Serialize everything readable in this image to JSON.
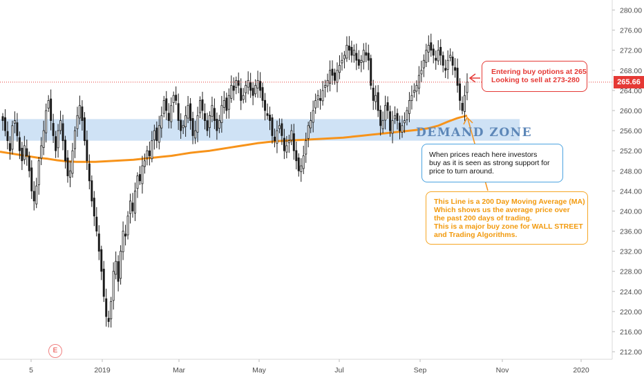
{
  "chart_data": {
    "type": "candlestick",
    "price_axis": {
      "ylim": [
        210.5,
        282
      ],
      "ticks": [
        212,
        216,
        220,
        224,
        228,
        232,
        236,
        240,
        244,
        248,
        252,
        256,
        260,
        264,
        268,
        272,
        276,
        280
      ],
      "decimals": 2
    },
    "time_axis": {
      "labels": [
        "5",
        "2019",
        "Mar",
        "May",
        "Jul",
        "Sep",
        "Nov",
        "2020"
      ]
    },
    "current_price": 265.66,
    "current_price_label": "265.66",
    "demand_zone": {
      "low": 254,
      "high": 258.3,
      "label": "DEMAND  ZONE"
    },
    "candles": {
      "notes": "daily closes, Oct 2018 - Oct 2019; red/black = bearish, white = bullish",
      "closes": [
        258,
        256,
        254,
        252,
        257,
        258,
        255,
        252,
        250,
        253,
        251,
        248,
        244,
        242,
        245,
        250,
        253,
        256,
        260,
        262,
        258,
        255,
        252,
        256,
        258,
        254,
        250,
        247,
        248,
        252,
        256,
        259,
        261,
        258,
        254,
        250,
        246,
        242,
        239,
        236,
        232,
        228,
        223,
        219,
        218,
        222,
        228,
        230,
        226,
        232,
        236,
        235,
        239,
        242,
        240,
        244,
        247,
        246,
        249,
        250,
        252,
        251,
        254,
        256,
        254,
        257,
        259,
        262,
        260,
        258,
        261,
        263,
        262,
        258,
        256,
        257,
        259,
        261,
        258,
        255,
        256,
        259,
        262,
        260,
        258,
        256,
        259,
        261,
        258,
        256,
        258,
        261,
        262,
        260,
        263,
        265,
        264,
        266,
        265,
        262,
        263,
        265,
        266,
        264,
        263,
        265,
        266,
        264,
        262,
        260,
        259,
        258,
        255,
        254,
        256,
        257,
        255,
        252,
        253,
        254,
        256,
        252,
        250,
        248,
        249,
        251,
        254,
        257,
        258,
        260,
        262,
        263,
        262,
        264,
        265,
        266,
        268,
        267,
        266,
        268,
        269,
        270,
        271,
        273,
        272,
        271,
        272,
        270,
        269,
        270,
        272,
        271,
        270,
        265,
        262,
        263,
        260,
        257,
        258,
        261,
        260,
        256,
        258,
        259,
        258,
        256,
        257,
        258,
        260,
        262,
        263,
        264,
        265,
        267,
        268,
        270,
        272,
        273,
        272,
        271,
        270,
        272,
        271,
        269,
        268,
        270,
        271,
        269,
        268,
        265,
        262,
        260,
        263,
        265.66
      ]
    },
    "moving_average": {
      "label": "200 Day Moving Average (MA)",
      "points": [
        251.8,
        251.5,
        251.2,
        250.9,
        250.6,
        250.4,
        250.1,
        249.9,
        249.8,
        249.8,
        249.8,
        249.9,
        250.0,
        250.1,
        250.2,
        250.4,
        250.6,
        250.8,
        251.0,
        251.3,
        251.6,
        251.8,
        252.0,
        252.3,
        252.6,
        252.9,
        253.2,
        253.5,
        253.7,
        253.9,
        254.0,
        254.1,
        254.2,
        254.3,
        254.4,
        254.5,
        254.6,
        254.8,
        255.0,
        255.2,
        255.4,
        255.6,
        255.8,
        256.0,
        256.2,
        256.5,
        257.0,
        257.8,
        258.5,
        259.0
      ]
    },
    "annotations": {
      "entry": [
        "Entering buy options at 265",
        "Looking to sell at 273-280"
      ],
      "support": [
        "When prices reach here investors",
        "buy as it is seen as strong support for",
        "price to turn around."
      ],
      "ma": [
        "This Line is a 200 Day Moving Average (MA)",
        "Which shows us the average price over",
        "the past 200 days of trading.",
        "This is a major buy zone for WALL STREET",
        "and Trading Algorithms."
      ]
    },
    "earnings_marker": "E",
    "colors": {
      "bull": "#ffffff",
      "bear": "#1a1a1a",
      "ma": "#f7931a",
      "zone": "#cfe2f5",
      "price_line": "#e53935",
      "support_box": "#4aa3e0",
      "ma_box": "#f6a623"
    }
  }
}
